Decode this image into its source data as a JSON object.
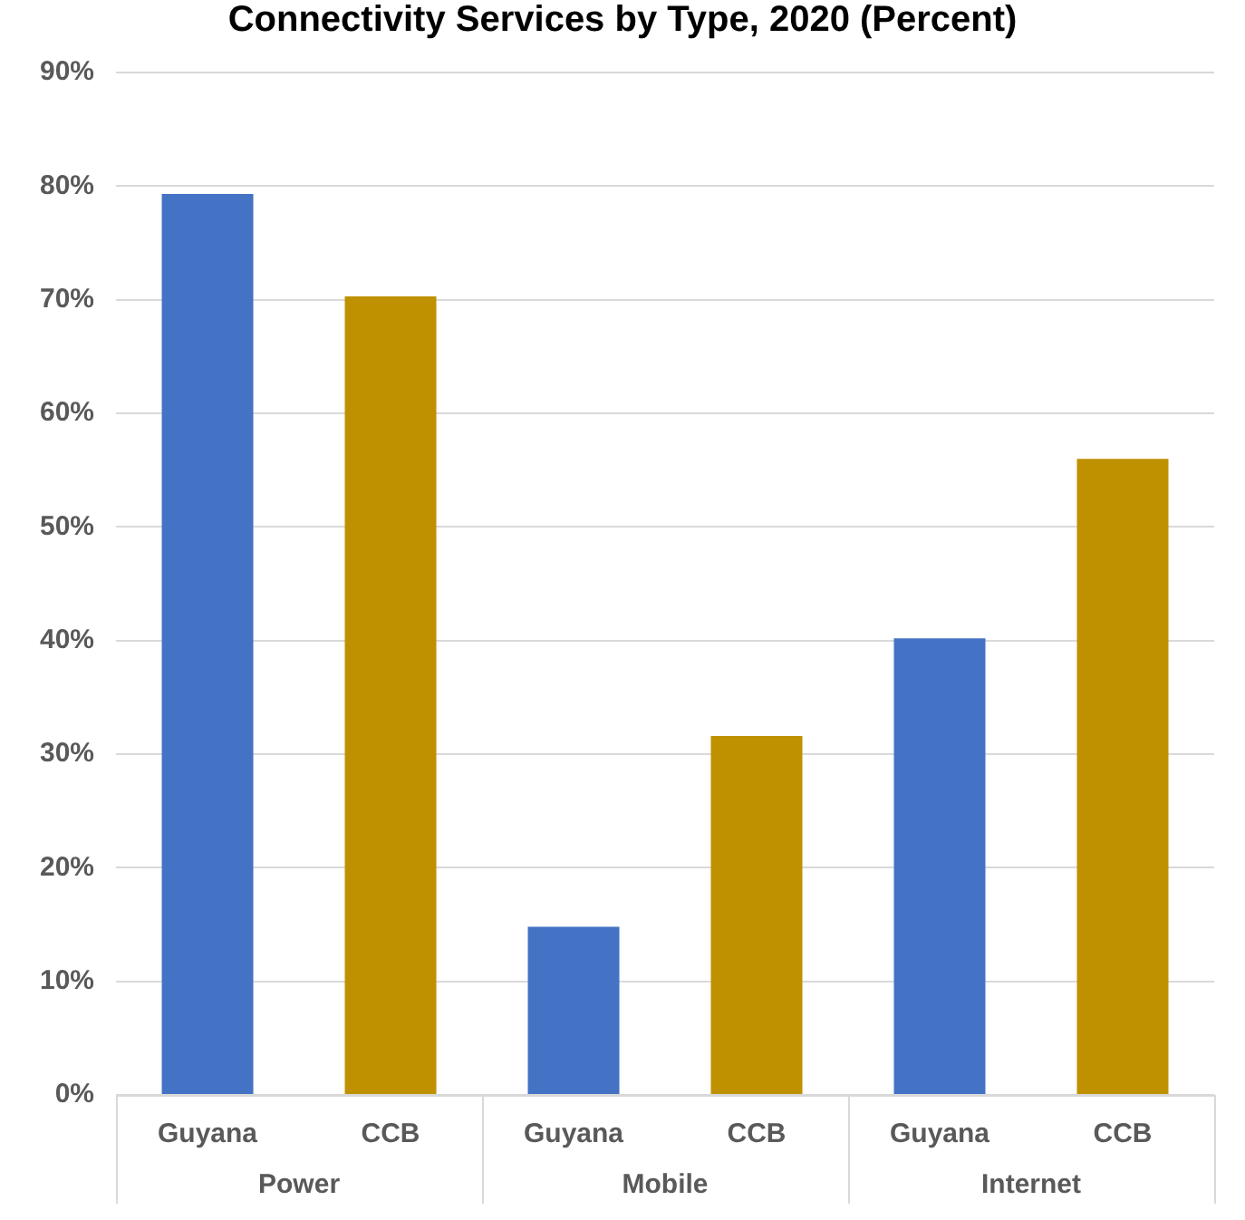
{
  "chart_data": {
    "type": "bar",
    "title": "Connectivity Services by Type, 2020 (Percent)",
    "categories": [
      "Power",
      "Mobile",
      "Internet"
    ],
    "series": [
      {
        "name": "Guyana",
        "color": "#4472c4",
        "values": [
          79.3,
          14.8,
          40.2
        ]
      },
      {
        "name": "CCB",
        "color": "#bf9000",
        "values": [
          70.3,
          31.6,
          56.0
        ]
      }
    ],
    "ylim": [
      0,
      90
    ],
    "yticks": [
      {
        "value": 0,
        "label": "0%"
      },
      {
        "value": 10,
        "label": "10%"
      },
      {
        "value": 20,
        "label": "20%"
      },
      {
        "value": 30,
        "label": "30%"
      },
      {
        "value": 40,
        "label": "40%"
      },
      {
        "value": 50,
        "label": "50%"
      },
      {
        "value": 60,
        "label": "60%"
      },
      {
        "value": 70,
        "label": "70%"
      },
      {
        "value": 80,
        "label": "80%"
      },
      {
        "value": 90,
        "label": "90%"
      }
    ],
    "grid": "y",
    "legend": false
  }
}
